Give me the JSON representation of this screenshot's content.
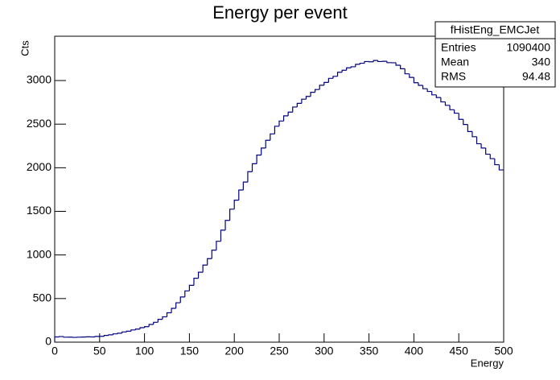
{
  "chart_data": {
    "type": "histogram",
    "title": "Energy per event",
    "xlabel": "Energy",
    "ylabel": "Cts",
    "color": "#000080",
    "bins": [
      0,
      5,
      10,
      15,
      20,
      25,
      30,
      35,
      40,
      45,
      50,
      55,
      60,
      65,
      70,
      75,
      80,
      85,
      90,
      95,
      100,
      105,
      110,
      115,
      120,
      125,
      130,
      135,
      140,
      145,
      150,
      155,
      160,
      165,
      170,
      175,
      180,
      185,
      190,
      195,
      200,
      205,
      210,
      215,
      220,
      225,
      230,
      235,
      240,
      245,
      250,
      255,
      260,
      265,
      270,
      275,
      280,
      285,
      290,
      295,
      300,
      305,
      310,
      315,
      320,
      325,
      330,
      335,
      340,
      345,
      350,
      355,
      360,
      365,
      370,
      375,
      380,
      385,
      390,
      395,
      400,
      405,
      410,
      415,
      420,
      425,
      430,
      435,
      440,
      445,
      450,
      455,
      460,
      465,
      470,
      475,
      480,
      485,
      490,
      495,
      500
    ],
    "values": [
      60,
      64,
      57,
      58,
      55,
      57,
      59,
      61,
      60,
      66,
      67,
      77,
      84,
      95,
      103,
      117,
      126,
      140,
      150,
      166,
      178,
      203,
      228,
      262,
      290,
      337,
      388,
      452,
      518,
      588,
      652,
      733,
      802,
      884,
      958,
      1055,
      1157,
      1284,
      1396,
      1525,
      1628,
      1745,
      1836,
      1955,
      2046,
      2145,
      2226,
      2315,
      2388,
      2476,
      2536,
      2595,
      2638,
      2696,
      2738,
      2786,
      2818,
      2865,
      2897,
      2946,
      2978,
      3025,
      3048,
      3095,
      3118,
      3146,
      3158,
      3186,
      3198,
      3218,
      3215,
      3230,
      3218,
      3221,
      3205,
      3204,
      3176,
      3135,
      3077,
      3036,
      2975,
      2945,
      2906,
      2875,
      2836,
      2805,
      2755,
      2716,
      2665,
      2626,
      2555,
      2496,
      2415,
      2356,
      2275,
      2226,
      2155,
      2104,
      2035,
      1975
    ],
    "xlim": [
      0,
      500
    ],
    "xticks": [
      0,
      50,
      100,
      150,
      200,
      250,
      300,
      350,
      400,
      450,
      500
    ],
    "ylim": [
      0,
      3508
    ],
    "yticks": [
      0,
      500,
      1000,
      1500,
      2000,
      2500,
      3000
    ]
  },
  "stats": {
    "name": "fHistEng_EMCJet",
    "rows": [
      {
        "label": "Entries",
        "value": 1090400
      },
      {
        "label": "Mean",
        "value": 340
      },
      {
        "label": "RMS",
        "value": 94.48
      }
    ]
  }
}
